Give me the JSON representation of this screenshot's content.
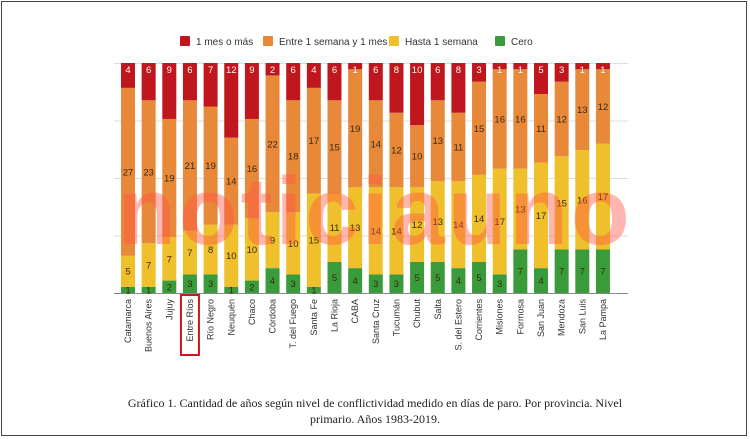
{
  "chart_data": {
    "type": "bar",
    "stacked": true,
    "categories": [
      "Catamarca",
      "Buenos Aires",
      "Jujuy",
      "Entre Ríos",
      "Río Negro",
      "Neuquén",
      "Chaco",
      "Córdoba",
      "T. del Fuego",
      "Santa Fe",
      "La Rioja",
      "CABA",
      "Santa Cruz",
      "Tucumán",
      "Chubut",
      "Salta",
      "S. del Estero",
      "Corrientes",
      "Misiones",
      "Formosa",
      "San Juan",
      "Mendoza",
      "San Luis",
      "La Pampa"
    ],
    "series": [
      {
        "name": "Cero",
        "color": "#3a9b3a",
        "values": [
          1,
          1,
          2,
          3,
          3,
          1,
          2,
          4,
          3,
          1,
          5,
          4,
          3,
          3,
          5,
          5,
          4,
          5,
          3,
          7,
          4,
          7,
          7,
          7
        ]
      },
      {
        "name": "Hasta 1 semana",
        "color": "#f0bf2c",
        "values": [
          5,
          7,
          7,
          7,
          8,
          10,
          10,
          9,
          10,
          15,
          11,
          13,
          14,
          14,
          12,
          13,
          14,
          14,
          17,
          13,
          17,
          15,
          16,
          17
        ]
      },
      {
        "name": "Entre 1 semana y 1 mes",
        "color": "#e8893a",
        "values": [
          27,
          23,
          19,
          21,
          19,
          14,
          16,
          22,
          18,
          17,
          15,
          19,
          14,
          12,
          10,
          13,
          11,
          15,
          16,
          16,
          11,
          12,
          13,
          12
        ]
      },
      {
        "name": "1 mes o más",
        "color": "#c0161d",
        "values": [
          4,
          6,
          9,
          6,
          7,
          12,
          9,
          2,
          6,
          4,
          6,
          1,
          6,
          8,
          10,
          6,
          8,
          3,
          1,
          1,
          5,
          3,
          1,
          1
        ]
      }
    ],
    "legend_order": [
      "1 mes o más",
      "Entre 1 semana y 1 mes",
      "Hasta 1 semana",
      "Cero"
    ],
    "legend_position": "top",
    "ylim": [
      0,
      37
    ],
    "grid": true,
    "highlighted_category": "Entre Ríos",
    "highlight_color": "#d0161c"
  },
  "watermark": "noticiauno",
  "caption": "Gráfico 1. Cantidad de años según nivel de conflictividad medido en días de paro. Por provincia. Nivel primario. Años 1983-2019."
}
